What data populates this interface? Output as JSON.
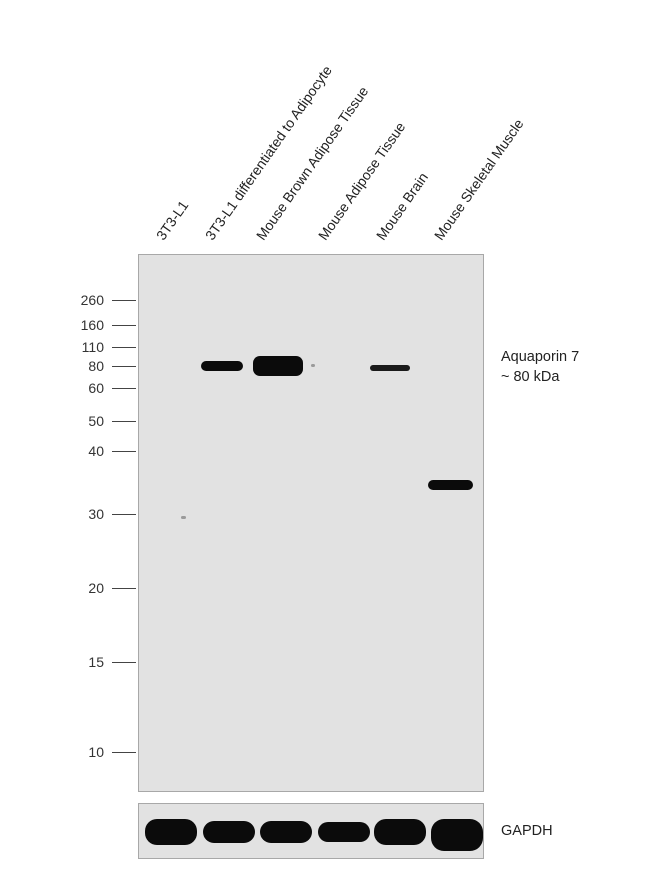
{
  "lanes": [
    {
      "label": "3T3-L1"
    },
    {
      "label": "3T3-L1 differentiated to Adipocyte"
    },
    {
      "label": "Mouse Brown Adipose Tissue"
    },
    {
      "label": "Mouse Adipose Tissue"
    },
    {
      "label": "Mouse Brain"
    },
    {
      "label": "Mouse Skeletal Muscle"
    }
  ],
  "markers": [
    "260",
    "160",
    "110",
    "80",
    "60",
    "50",
    "40",
    "30",
    "20",
    "15",
    "10"
  ],
  "target": {
    "name": "Aquaporin 7",
    "size": "~ 80 kDa"
  },
  "loading_control": {
    "name": "GAPDH"
  },
  "colors": {
    "band": "#0b0b0b",
    "membrane": "#e2e2e2"
  }
}
